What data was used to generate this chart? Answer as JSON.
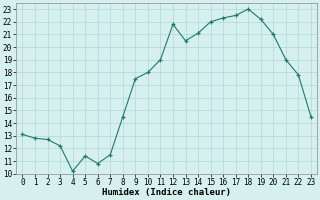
{
  "x": [
    0,
    1,
    2,
    3,
    4,
    5,
    6,
    7,
    8,
    9,
    10,
    11,
    12,
    13,
    14,
    15,
    16,
    17,
    18,
    19,
    20,
    21,
    22,
    23
  ],
  "y": [
    13.1,
    12.8,
    12.7,
    12.2,
    10.2,
    11.4,
    10.8,
    11.5,
    14.5,
    17.5,
    18.0,
    19.0,
    21.8,
    20.5,
    21.1,
    22.0,
    22.3,
    22.5,
    23.0,
    22.2,
    21.0,
    19.0,
    17.8,
    14.5
  ],
  "title": "",
  "xlabel": "Humidex (Indice chaleur)",
  "ylabel": "",
  "xlim": [
    -0.5,
    23.5
  ],
  "ylim": [
    10,
    23.5
  ],
  "yticks": [
    10,
    11,
    12,
    13,
    14,
    15,
    16,
    17,
    18,
    19,
    20,
    21,
    22,
    23
  ],
  "xticks": [
    0,
    1,
    2,
    3,
    4,
    5,
    6,
    7,
    8,
    9,
    10,
    11,
    12,
    13,
    14,
    15,
    16,
    17,
    18,
    19,
    20,
    21,
    22,
    23
  ],
  "line_color": "#1f7a6a",
  "marker_color": "#1f7a6a",
  "bg_color": "#d6f0ef",
  "grid_color": "#b0d8d4",
  "label_fontsize": 6.5,
  "tick_fontsize": 5.5
}
